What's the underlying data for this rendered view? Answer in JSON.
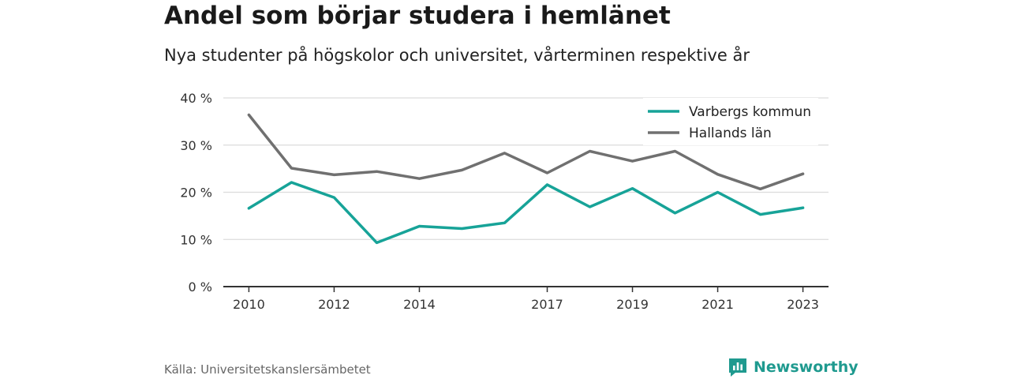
{
  "header": {
    "title": "Andel som börjar studera i hemlänet",
    "subtitle": "Nya studenter på högskolor och universitet, vårterminen respektive år"
  },
  "footer": {
    "source": "Källa: Universitetskanslersämbetet",
    "brand": "Newsworthy",
    "brand_icon": "newsworthy-logo-icon"
  },
  "colors": {
    "varberg": "#17a398",
    "halland": "#707070",
    "grid": "#dcdcdc",
    "axis": "#333333",
    "brand": "#1f9a8f"
  },
  "chart_data": {
    "type": "line",
    "x": [
      2010,
      2011,
      2012,
      2013,
      2014,
      2015,
      2016,
      2017,
      2018,
      2019,
      2020,
      2021,
      2022,
      2023
    ],
    "x_tick_labels": [
      "2010",
      "2012",
      "2014",
      "2017",
      "2019",
      "2021",
      "2023"
    ],
    "x_ticks": [
      2010,
      2012,
      2014,
      2017,
      2019,
      2021,
      2023
    ],
    "y_tick_labels": [
      "0 %",
      "10 %",
      "20 %",
      "30 %",
      "40 %"
    ],
    "y_ticks": [
      0,
      10,
      20,
      30,
      40
    ],
    "ylim": [
      0,
      40
    ],
    "xlim": [
      2009.4,
      2023.6
    ],
    "grid": true,
    "legend_position": "top-right",
    "series": [
      {
        "name": "Varbergs kommun",
        "color": "#17a398",
        "values": [
          16.6,
          22.1,
          18.9,
          9.3,
          12.8,
          12.3,
          13.5,
          21.6,
          16.9,
          20.8,
          15.6,
          20.0,
          15.3,
          16.7
        ]
      },
      {
        "name": "Hallands län",
        "color": "#707070",
        "values": [
          36.4,
          25.1,
          23.7,
          24.4,
          22.9,
          24.7,
          28.3,
          24.1,
          28.7,
          26.6,
          28.7,
          23.8,
          20.7,
          23.9
        ]
      }
    ]
  }
}
